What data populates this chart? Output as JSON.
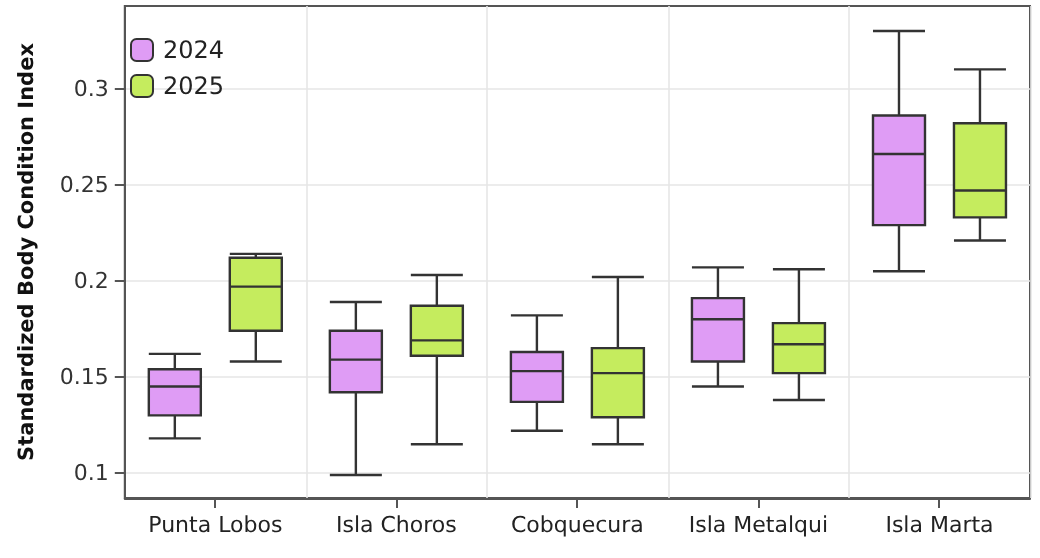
{
  "chart_data": {
    "type": "box",
    "ylabel": "Standardized Body Condition Index",
    "categories": [
      "Punta Lobos",
      "Isla Choros",
      "Cobquecura",
      "Isla Metalqui",
      "Isla Marta"
    ],
    "series": [
      {
        "name": "2024",
        "color": "#df9cf5",
        "boxes": [
          {
            "low": 0.118,
            "q1": 0.13,
            "median": 0.145,
            "q3": 0.154,
            "high": 0.162
          },
          {
            "low": 0.099,
            "q1": 0.142,
            "median": 0.159,
            "q3": 0.174,
            "high": 0.189
          },
          {
            "low": 0.122,
            "q1": 0.137,
            "median": 0.153,
            "q3": 0.163,
            "high": 0.182
          },
          {
            "low": 0.145,
            "q1": 0.158,
            "median": 0.18,
            "q3": 0.191,
            "high": 0.207
          },
          {
            "low": 0.205,
            "q1": 0.229,
            "median": 0.266,
            "q3": 0.286,
            "high": 0.33
          }
        ]
      },
      {
        "name": "2025",
        "color": "#c5ec5e",
        "boxes": [
          {
            "low": 0.158,
            "q1": 0.174,
            "median": 0.197,
            "q3": 0.212,
            "high": 0.214
          },
          {
            "low": 0.115,
            "q1": 0.161,
            "median": 0.169,
            "q3": 0.187,
            "high": 0.203
          },
          {
            "low": 0.115,
            "q1": 0.129,
            "median": 0.152,
            "q3": 0.165,
            "high": 0.202
          },
          {
            "low": 0.138,
            "q1": 0.152,
            "median": 0.167,
            "q3": 0.178,
            "high": 0.206
          },
          {
            "low": 0.221,
            "q1": 0.233,
            "median": 0.247,
            "q3": 0.282,
            "high": 0.31
          }
        ]
      }
    ],
    "ylim": [
      0.087,
      0.343
    ],
    "yticks": [
      0.1,
      0.15,
      0.2,
      0.25,
      0.3
    ],
    "grid": true,
    "legend": "top left"
  }
}
